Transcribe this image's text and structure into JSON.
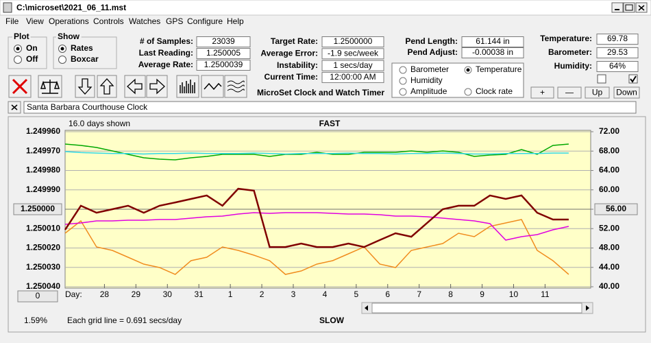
{
  "window": {
    "title": "C:\\microset\\2021_06_11.mst"
  },
  "menu": [
    "File",
    "View",
    "Operations",
    "Controls",
    "Watches",
    "GPS",
    "Configure",
    "Help"
  ],
  "plot_group": {
    "title": "Plot",
    "options": [
      "On",
      "Off"
    ]
  },
  "show_group": {
    "title": "Show",
    "options": [
      "Rates",
      "Boxcar"
    ]
  },
  "fields": [
    [
      {
        "label": "# of Samples:",
        "value": "23039"
      },
      {
        "label": "Last Reading:",
        "value": "1.250005"
      },
      {
        "label": "Average Rate:",
        "value": "1.2500039"
      }
    ],
    [
      {
        "label": "Target Rate:",
        "value": "1.2500000"
      },
      {
        "label": "Average Error:",
        "value": "-1.9 sec/week"
      },
      {
        "label": "Instability:",
        "value": "1 secs/day"
      },
      {
        "label": "Current Time:",
        "value": "12:00:00 AM"
      }
    ],
    [
      {
        "label": "Pend Length:",
        "value": "61.144 in"
      },
      {
        "label": "Pend Adjust:",
        "value": "-0.00038 in"
      }
    ],
    [
      {
        "label": "Temperature:",
        "value": "69.78"
      },
      {
        "label": "Barometer:",
        "value": "29.53"
      },
      {
        "label": "Humidity:",
        "value": "64%"
      }
    ]
  ],
  "app_title": "MicroSet Clock and Watch Timer",
  "buttons": [
    "+",
    "—",
    "Up",
    "Down"
  ],
  "clock_name": "Santa Barbara Courthouse Clock",
  "chart_data": {
    "type": "line",
    "days_shown": "16.0 days shown",
    "top_label": "FAST",
    "bottom_label": "SLOW",
    "grid_note": "Each grid line = 0.691 secs/day",
    "status": "1.59%",
    "scroll_button": "0",
    "xlabel": "Day:",
    "grid": true,
    "xlim": [
      0,
      16.7
    ],
    "xticks": [
      {
        "value": 1.25,
        "label": "28"
      },
      {
        "value": 2.25,
        "label": "29"
      },
      {
        "value": 3.25,
        "label": "30"
      },
      {
        "value": 4.25,
        "label": "31"
      },
      {
        "value": 5.25,
        "label": "1"
      },
      {
        "value": 6.25,
        "label": "2"
      },
      {
        "value": 7.25,
        "label": "3"
      },
      {
        "value": 8.25,
        "label": "4"
      },
      {
        "value": 9.25,
        "label": "5"
      },
      {
        "value": 10.25,
        "label": "6"
      },
      {
        "value": 11.25,
        "label": "7"
      },
      {
        "value": 12.25,
        "label": "8"
      },
      {
        "value": 13.25,
        "label": "9"
      },
      {
        "value": 14.25,
        "label": "10"
      },
      {
        "value": 15.25,
        "label": "11"
      }
    ],
    "ylim": [
      1.25004,
      1.24996
    ],
    "yticks": [
      {
        "value": 1.24996,
        "label": "1.249960"
      },
      {
        "value": 1.24997,
        "label": "1.249970"
      },
      {
        "value": 1.24998,
        "label": "1.249980"
      },
      {
        "value": 1.24999,
        "label": "1.249990"
      },
      {
        "value": 1.25,
        "label": "1.250000"
      },
      {
        "value": 1.25001,
        "label": "1.250010"
      },
      {
        "value": 1.25002,
        "label": "1.250020"
      },
      {
        "value": 1.25003,
        "label": "1.250030"
      },
      {
        "value": 1.25004,
        "label": "1.250040"
      }
    ],
    "y2lim": [
      40,
      72
    ],
    "y2ticks": [
      {
        "value": 72,
        "label": "72.00"
      },
      {
        "value": 68,
        "label": "68.00"
      },
      {
        "value": 64,
        "label": "64.00"
      },
      {
        "value": 60,
        "label": "60.00"
      },
      {
        "value": 56,
        "label": "56.00"
      },
      {
        "value": 52,
        "label": "52.00"
      },
      {
        "value": 48,
        "label": "48.00"
      },
      {
        "value": 44,
        "label": "44.00"
      },
      {
        "value": 40,
        "label": "40.00"
      }
    ],
    "x": [
      0,
      0.5,
      1,
      1.5,
      2,
      2.5,
      3,
      3.5,
      4,
      4.5,
      5,
      5.5,
      6,
      6.5,
      7,
      7.5,
      8,
      8.5,
      9,
      9.5,
      10,
      10.5,
      11,
      11.5,
      12,
      12.5,
      13,
      13.5,
      14,
      14.5,
      15,
      15.5,
      16
    ],
    "series": [
      {
        "name": "Barometer",
        "color": "#f08c1e",
        "axis": "y2",
        "values": [
          51.04,
          53.59,
          48.21,
          47.5,
          46.09,
          44.67,
          43.96,
          42.55,
          45.38,
          46.09,
          48.21,
          47.5,
          46.51,
          45.38,
          42.55,
          43.26,
          44.67,
          45.38,
          46.8,
          48.21,
          44.67,
          43.96,
          47.5,
          48.21,
          48.92,
          51.04,
          50.34,
          52.46,
          53.17,
          53.88,
          47.5,
          45.38,
          42.55
        ]
      },
      {
        "name": "Temperature",
        "color": "#00a800",
        "axis": "y2",
        "values": [
          69.45,
          69.17,
          68.74,
          68.04,
          67.33,
          66.62,
          66.34,
          66.19,
          66.62,
          66.9,
          67.33,
          67.33,
          67.33,
          66.9,
          67.33,
          67.33,
          67.75,
          67.33,
          67.33,
          67.75,
          67.75,
          67.75,
          68.04,
          67.75,
          68.04,
          67.75,
          66.9,
          67.19,
          67.33,
          68.32,
          67.33,
          69.17,
          69.45
        ]
      },
      {
        "name": "Humidity",
        "color": "#e000e0",
        "axis": "y2",
        "values": [
          52.88,
          53.17,
          53.59,
          53.59,
          53.73,
          53.73,
          53.88,
          53.88,
          54.16,
          54.44,
          54.58,
          55.01,
          55.29,
          55.15,
          55.29,
          55.29,
          55.29,
          55.15,
          55.01,
          55.01,
          54.87,
          54.58,
          54.58,
          54.44,
          54.16,
          53.88,
          53.59,
          53.03,
          49.63,
          50.34,
          50.76,
          51.75,
          52.46
        ]
      },
      {
        "name": "Amplitude",
        "color": "#30d8e8",
        "axis": "y2",
        "values": [
          67.9,
          67.7,
          67.6,
          67.5,
          67.5,
          67.4,
          67.5,
          67.5,
          67.6,
          67.5,
          67.5,
          67.5,
          67.6,
          67.5,
          67.4,
          67.5,
          67.5,
          67.5,
          67.6,
          67.5,
          67.5,
          67.4,
          67.5,
          67.5,
          67.6,
          67.5,
          67.4,
          67.4,
          67.5,
          67.5,
          67.5,
          67.6,
          67.6
        ]
      },
      {
        "name": "Clock rate",
        "color": "#800000",
        "axis": "y",
        "values": [
          1.2500106,
          1.2499982,
          1.2500018,
          1.25,
          1.2499982,
          1.2500018,
          1.2499982,
          1.2499965,
          1.2499947,
          1.2499929,
          1.2499982,
          1.2499894,
          1.2499904,
          1.2500195,
          1.2500195,
          1.2500177,
          1.2500195,
          1.2500195,
          1.2500177,
          1.2500195,
          1.2500159,
          1.2500124,
          1.2500142,
          1.2500071,
          1.25,
          1.2499982,
          1.2499982,
          1.2499929,
          1.2499947,
          1.2499929,
          1.2500018,
          1.2500053,
          1.2500053
        ]
      }
    ]
  }
}
